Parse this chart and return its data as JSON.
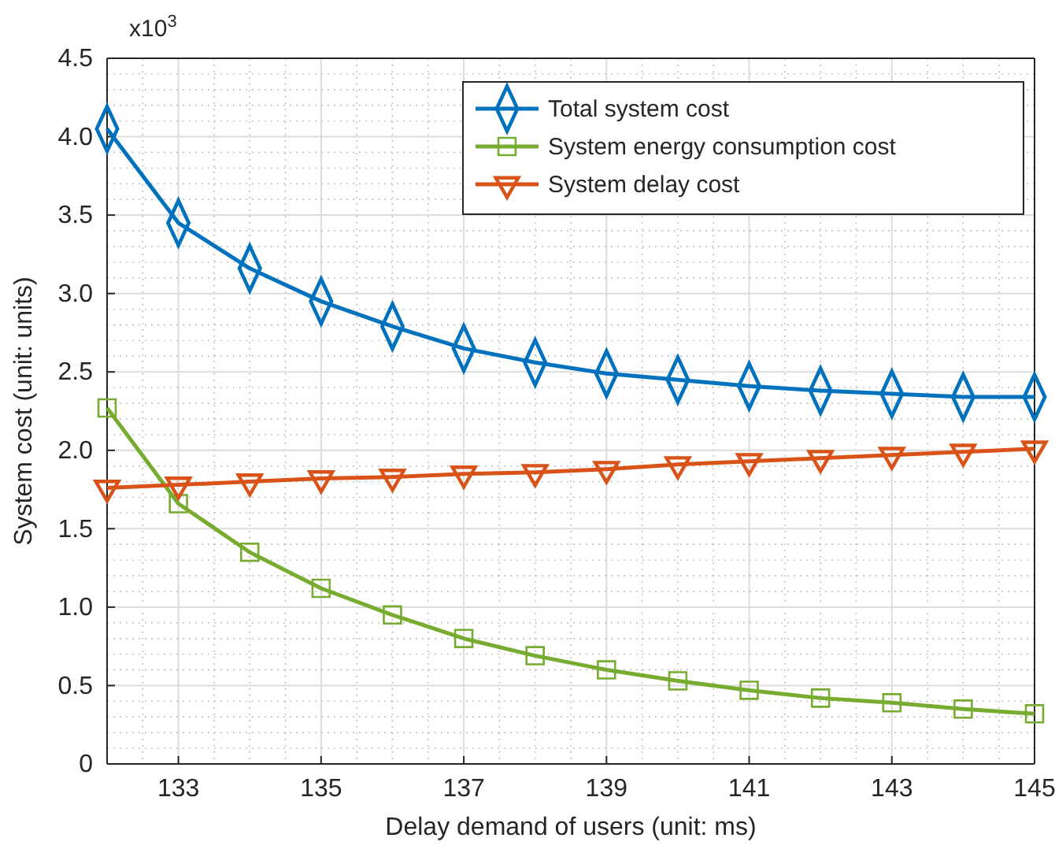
{
  "chart_data": {
    "type": "line",
    "xlabel": "Delay demand of users (unit: ms)",
    "ylabel": "System cost (unit: units)",
    "annotations": [
      "x10$^{3}$"
    ],
    "x": [
      132,
      133,
      134,
      135,
      136,
      137,
      138,
      139,
      140,
      141,
      142,
      143,
      144,
      145
    ],
    "xlim": [
      132,
      145
    ],
    "xticks": [
      133,
      135,
      137,
      139,
      141,
      143,
      145
    ],
    "ylim": [
      0,
      4.5
    ],
    "yticks": [
      {
        "value": 0,
        "label": "0"
      },
      {
        "value": 0.5,
        "label": "0.5"
      },
      {
        "value": 1,
        "label": "1.0"
      },
      {
        "value": 1.5,
        "label": "1.5"
      },
      {
        "value": 2,
        "label": "2.0"
      },
      {
        "value": 2.5,
        "label": "2.5"
      },
      {
        "value": 3,
        "label": "3.0"
      },
      {
        "value": 3.5,
        "label": "3.5"
      },
      {
        "value": 4,
        "label": "4.0"
      },
      {
        "value": 4.5,
        "label": "4.5"
      }
    ],
    "grid": true,
    "legend": "top right",
    "line_style": "solid",
    "series": [
      {
        "name": "Total system cost",
        "color": "#0072bd",
        "marker": "diamond",
        "values": [
          4.05,
          3.45,
          3.16,
          2.95,
          2.79,
          2.65,
          2.56,
          2.49,
          2.45,
          2.41,
          2.38,
          2.36,
          2.34,
          2.34
        ]
      },
      {
        "name": "System energy consumption cost",
        "color": "#77ac30",
        "marker": "square",
        "values": [
          2.27,
          1.66,
          1.35,
          1.12,
          0.95,
          0.8,
          0.69,
          0.6,
          0.53,
          0.47,
          0.42,
          0.39,
          0.35,
          0.32
        ]
      },
      {
        "name": "System delay cost",
        "color": "#d95319",
        "marker": "triangle",
        "values": [
          1.76,
          1.78,
          1.8,
          1.82,
          1.83,
          1.85,
          1.86,
          1.88,
          1.91,
          1.93,
          1.95,
          1.97,
          1.99,
          2.01
        ]
      }
    ]
  }
}
